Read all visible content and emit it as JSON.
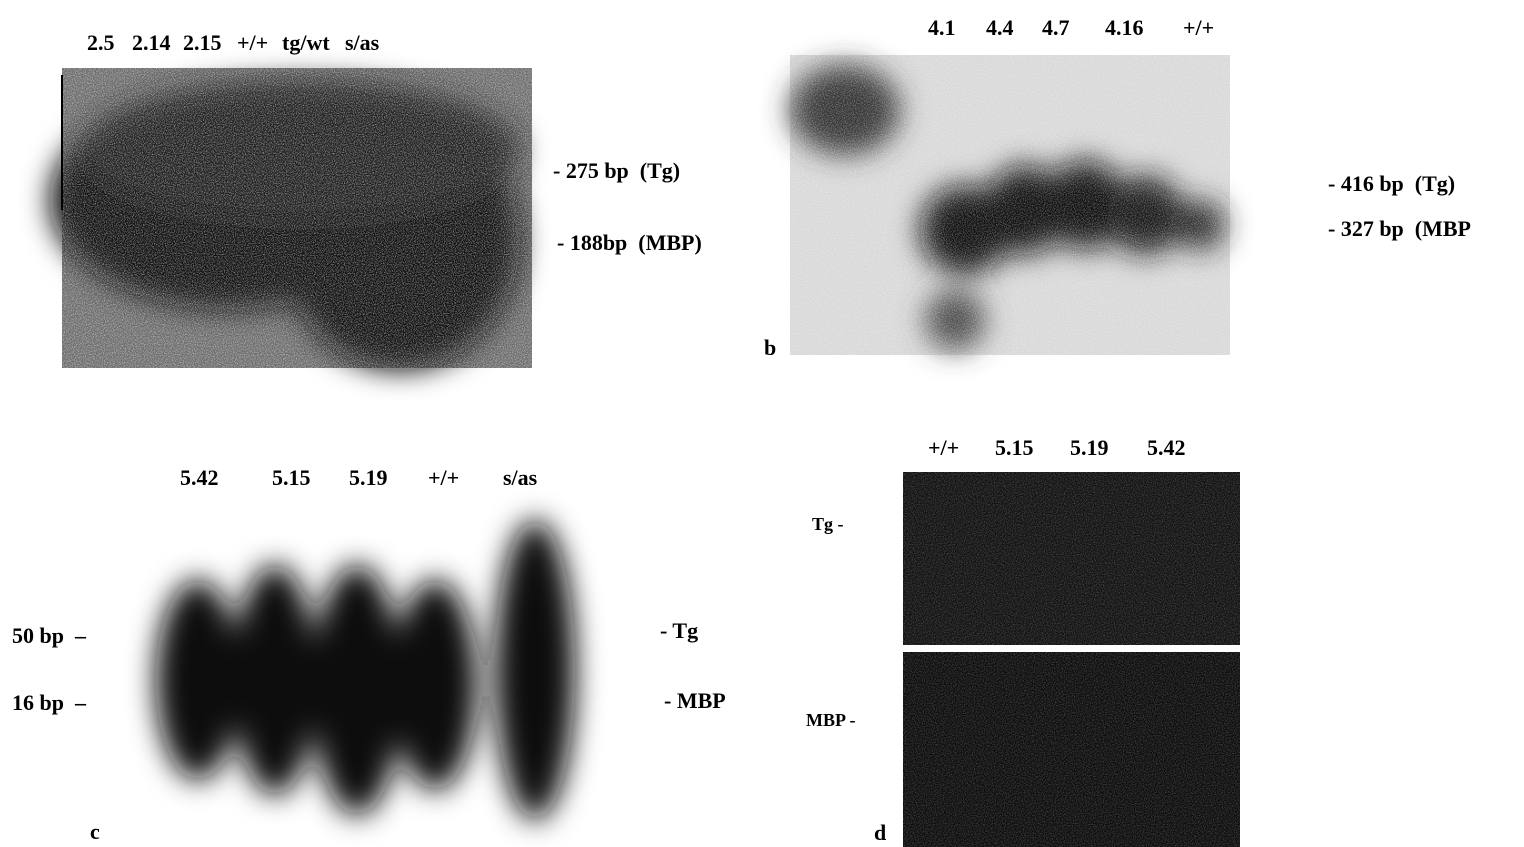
{
  "panels": [
    {
      "lanes": [
        "2.5",
        "2.14",
        "2.15",
        "+/+",
        "tg/wt",
        "s/as"
      ],
      "right_markers": [
        "- 275 bp  (Tg)",
        "- 188bp  (MBP)"
      ]
    },
    {
      "label": "b",
      "lanes": [
        "4.1",
        "4.4",
        "4.7",
        "4.16",
        "+/+"
      ],
      "right_markers": [
        "- 416 bp  (Tg)",
        "- 327 bp  (MBP"
      ]
    },
    {
      "label": "c",
      "lanes": [
        "5.42",
        "5.15",
        "5.19",
        "+/+",
        "s/as"
      ],
      "left_markers": [
        "50 bp  –",
        "16 bp  –"
      ],
      "right_markers": [
        "- Tg",
        "- MBP"
      ]
    },
    {
      "label": "d",
      "lanes": [
        "+/+",
        "5.15",
        "5.19",
        "5.42"
      ],
      "left_markers": [
        "Tg -",
        "MBP -"
      ]
    }
  ]
}
